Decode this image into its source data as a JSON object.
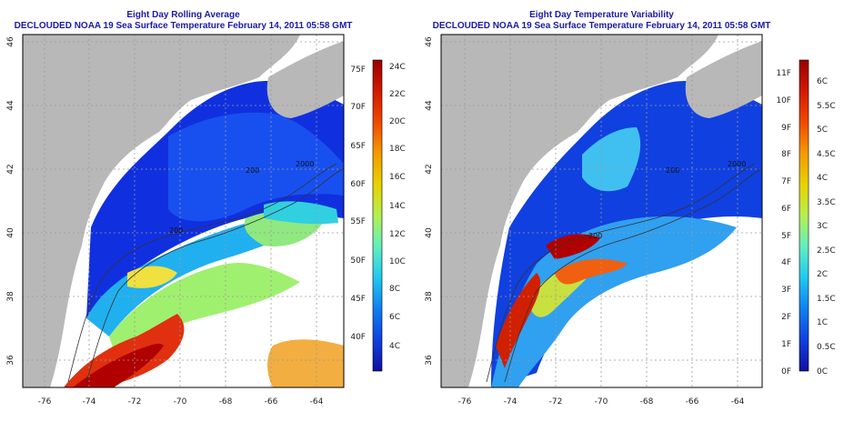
{
  "left_panel": {
    "title_line1": "Eight Day Rolling Average",
    "title_line2": "DECLOUDED NOAA 19 Sea Surface Temperature February 14, 2011 05:58 GMT",
    "xticks": [
      "-76",
      "-74",
      "-72",
      "-70",
      "-68",
      "-66",
      "-64"
    ],
    "yticks": [
      "46",
      "44",
      "42",
      "40",
      "38",
      "36"
    ],
    "contour_labels": [
      "200",
      "200",
      "2000"
    ],
    "colorbar": {
      "fahrenheit": [
        "75F",
        "70F",
        "65F",
        "60F",
        "55F",
        "50F",
        "45F",
        "40F"
      ],
      "celsius": [
        "24C",
        "22C",
        "20C",
        "18C",
        "16C",
        "14C",
        "12C",
        "10C",
        "8C",
        "6C",
        "4C"
      ],
      "colors": [
        "#9b0000",
        "#d21a00",
        "#f04a00",
        "#f59a00",
        "#e8d200",
        "#b4f050",
        "#60f0c0",
        "#20c8f0",
        "#1080f0",
        "#1040e0",
        "#1010a0"
      ]
    }
  },
  "right_panel": {
    "title_line1": "Eight Day Temperature Variability",
    "title_line2": "DECLOUDED NOAA 19 Sea Surface Temperature February 14, 2011 05:58 GMT",
    "xticks": [
      "-76",
      "-74",
      "-72",
      "-70",
      "-68",
      "-66",
      "-64"
    ],
    "yticks": [
      "46",
      "44",
      "42",
      "40",
      "38",
      "36"
    ],
    "contour_labels": [
      "200",
      "200",
      "2000"
    ],
    "colorbar": {
      "fahrenheit": [
        "11F",
        "10F",
        "9F",
        "8F",
        "7F",
        "6F",
        "5F",
        "4F",
        "3F",
        "2F",
        "1F",
        "0F"
      ],
      "celsius": [
        "6C",
        "5.5C",
        "5C",
        "4.5C",
        "4C",
        "3.5C",
        "3C",
        "2.5C",
        "2C",
        "1.5C",
        "1C",
        "0.5C",
        "0C"
      ],
      "colors": [
        "#9b0000",
        "#d21a00",
        "#f04a00",
        "#f59a00",
        "#e8d200",
        "#b4f050",
        "#60f0c0",
        "#20c8f0",
        "#1080f0",
        "#1040e0",
        "#1010a0"
      ]
    }
  },
  "colors": {
    "land": "#b8b8b8",
    "no_data": "#ffffff",
    "title": "#1a1aa6",
    "grid": "#9a9a9a"
  }
}
